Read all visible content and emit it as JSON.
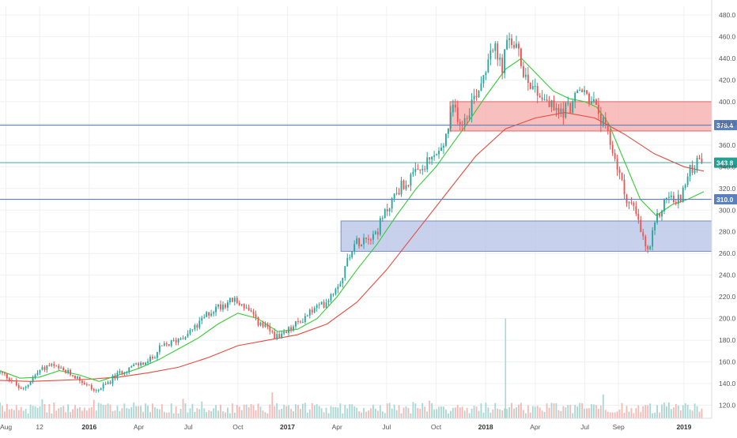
{
  "chart_data": {
    "type": "candlestick",
    "title": "",
    "xlabel": "",
    "ylabel": "",
    "ylim": [
      108,
      488
    ],
    "grid": true,
    "y_ticks": [
      "120.0",
      "140.0",
      "160.0",
      "180.0",
      "200.0",
      "220.0",
      "240.0",
      "260.0",
      "280.0",
      "300.0",
      "320.0",
      "340.0",
      "360.0",
      "380.0",
      "400.0",
      "420.0",
      "440.0",
      "460.0",
      "480.0"
    ],
    "x_ticks": [
      {
        "label": "Aug",
        "t": 2015.58,
        "bold": false
      },
      {
        "label": "12",
        "t": 2015.75,
        "bold": false
      },
      {
        "label": "2016",
        "t": 2016.0,
        "bold": true
      },
      {
        "label": "Apr",
        "t": 2016.25,
        "bold": false
      },
      {
        "label": "Jul",
        "t": 2016.5,
        "bold": false
      },
      {
        "label": "Oct",
        "t": 2016.75,
        "bold": false
      },
      {
        "label": "2017",
        "t": 2017.0,
        "bold": true
      },
      {
        "label": "Apr",
        "t": 2017.25,
        "bold": false
      },
      {
        "label": "Jul",
        "t": 2017.5,
        "bold": false
      },
      {
        "label": "Oct",
        "t": 2017.75,
        "bold": false
      },
      {
        "label": "2018",
        "t": 2018.0,
        "bold": true
      },
      {
        "label": "Apr",
        "t": 2018.25,
        "bold": false
      },
      {
        "label": "Jul",
        "t": 2018.5,
        "bold": false
      },
      {
        "label": "Sep",
        "t": 2018.67,
        "bold": false
      },
      {
        "label": "2019",
        "t": 2019.0,
        "bold": true
      }
    ],
    "x_range": [
      2015.55,
      2019.14
    ],
    "price_path": [
      [
        2015.55,
        150
      ],
      [
        2015.6,
        145
      ],
      [
        2015.66,
        133
      ],
      [
        2015.7,
        142
      ],
      [
        2015.75,
        152
      ],
      [
        2015.8,
        157
      ],
      [
        2015.86,
        152
      ],
      [
        2015.92,
        148
      ],
      [
        2015.98,
        140
      ],
      [
        2016.03,
        133
      ],
      [
        2016.08,
        138
      ],
      [
        2016.12,
        145
      ],
      [
        2016.18,
        153
      ],
      [
        2016.24,
        157
      ],
      [
        2016.3,
        160
      ],
      [
        2016.36,
        173
      ],
      [
        2016.42,
        178
      ],
      [
        2016.48,
        185
      ],
      [
        2016.54,
        192
      ],
      [
        2016.6,
        205
      ],
      [
        2016.66,
        212
      ],
      [
        2016.72,
        217
      ],
      [
        2016.78,
        212
      ],
      [
        2016.84,
        198
      ],
      [
        2016.9,
        190
      ],
      [
        2016.96,
        181
      ],
      [
        2017.0,
        188
      ],
      [
        2017.06,
        197
      ],
      [
        2017.12,
        207
      ],
      [
        2017.18,
        213
      ],
      [
        2017.23,
        225
      ],
      [
        2017.28,
        240
      ],
      [
        2017.32,
        265
      ],
      [
        2017.38,
        275
      ],
      [
        2017.45,
        280
      ],
      [
        2017.5,
        300
      ],
      [
        2017.56,
        320
      ],
      [
        2017.62,
        328
      ],
      [
        2017.68,
        337
      ],
      [
        2017.74,
        350
      ],
      [
        2017.78,
        355
      ],
      [
        2017.81,
        375
      ],
      [
        2017.84,
        395
      ],
      [
        2017.88,
        380
      ],
      [
        2017.93,
        400
      ],
      [
        2017.98,
        420
      ],
      [
        2018.03,
        455
      ],
      [
        2018.08,
        430
      ],
      [
        2018.12,
        460
      ],
      [
        2018.16,
        445
      ],
      [
        2018.2,
        425
      ],
      [
        2018.26,
        410
      ],
      [
        2018.31,
        400
      ],
      [
        2018.36,
        390
      ],
      [
        2018.42,
        395
      ],
      [
        2018.48,
        410
      ],
      [
        2018.52,
        405
      ],
      [
        2018.56,
        392
      ],
      [
        2018.6,
        375
      ],
      [
        2018.65,
        350
      ],
      [
        2018.7,
        315
      ],
      [
        2018.75,
        300
      ],
      [
        2018.79,
        275
      ],
      [
        2018.82,
        260
      ],
      [
        2018.86,
        290
      ],
      [
        2018.92,
        315
      ],
      [
        2018.96,
        305
      ],
      [
        2019.0,
        320
      ],
      [
        2019.04,
        340
      ],
      [
        2019.09,
        344
      ]
    ],
    "ma_fast": [
      [
        2015.55,
        152
      ],
      [
        2015.65,
        145
      ],
      [
        2015.75,
        146
      ],
      [
        2015.85,
        152
      ],
      [
        2015.95,
        148
      ],
      [
        2016.05,
        142
      ],
      [
        2016.15,
        148
      ],
      [
        2016.25,
        154
      ],
      [
        2016.35,
        162
      ],
      [
        2016.45,
        172
      ],
      [
        2016.55,
        182
      ],
      [
        2016.65,
        195
      ],
      [
        2016.75,
        205
      ],
      [
        2016.85,
        200
      ],
      [
        2016.95,
        188
      ],
      [
        2017.05,
        190
      ],
      [
        2017.15,
        200
      ],
      [
        2017.25,
        220
      ],
      [
        2017.35,
        245
      ],
      [
        2017.45,
        268
      ],
      [
        2017.55,
        295
      ],
      [
        2017.65,
        320
      ],
      [
        2017.75,
        340
      ],
      [
        2017.82,
        358
      ],
      [
        2017.9,
        378
      ],
      [
        2018.0,
        405
      ],
      [
        2018.1,
        430
      ],
      [
        2018.18,
        440
      ],
      [
        2018.26,
        425
      ],
      [
        2018.34,
        410
      ],
      [
        2018.42,
        403
      ],
      [
        2018.5,
        400
      ],
      [
        2018.56,
        395
      ],
      [
        2018.62,
        380
      ],
      [
        2018.7,
        345
      ],
      [
        2018.78,
        310
      ],
      [
        2018.86,
        295
      ],
      [
        2018.94,
        305
      ],
      [
        2019.02,
        310
      ],
      [
        2019.1,
        317
      ]
    ],
    "ma_slow": [
      [
        2015.55,
        143
      ],
      [
        2015.7,
        142
      ],
      [
        2015.85,
        143
      ],
      [
        2016.0,
        144
      ],
      [
        2016.15,
        146
      ],
      [
        2016.3,
        150
      ],
      [
        2016.45,
        155
      ],
      [
        2016.6,
        164
      ],
      [
        2016.75,
        175
      ],
      [
        2016.9,
        180
      ],
      [
        2017.05,
        185
      ],
      [
        2017.2,
        195
      ],
      [
        2017.35,
        215
      ],
      [
        2017.5,
        245
      ],
      [
        2017.65,
        280
      ],
      [
        2017.8,
        315
      ],
      [
        2017.95,
        350
      ],
      [
        2018.1,
        375
      ],
      [
        2018.25,
        385
      ],
      [
        2018.4,
        390
      ],
      [
        2018.55,
        385
      ],
      [
        2018.7,
        370
      ],
      [
        2018.85,
        352
      ],
      [
        2019.0,
        340
      ],
      [
        2019.1,
        336
      ]
    ],
    "horizontal_lines": [
      {
        "name": "level-378",
        "value": 378.4,
        "label": "378.4",
        "color": "#5b7fbf"
      },
      {
        "name": "level-310",
        "value": 310.0,
        "label": "310.0",
        "color": "#5b7fbf"
      },
      {
        "name": "last-price",
        "value": 343.8,
        "label": "343.8",
        "color": "#22a093"
      }
    ],
    "zones": [
      {
        "name": "resistance-zone",
        "t0": 2017.82,
        "t1": 2019.14,
        "y0": 373,
        "y1": 400,
        "fill": "#f5a9a9",
        "stroke": "#e06666"
      },
      {
        "name": "support-zone",
        "t0": 2017.27,
        "t1": 2019.14,
        "y0": 262,
        "y1": 290,
        "fill": "#b6c1e6",
        "stroke": "#7b8cc9"
      }
    ],
    "volume_spike": {
      "t": 2018.1,
      "value": 1.0
    },
    "colors": {
      "up": "#26a69a",
      "down": "#ef5350",
      "ma_fast": "#33cc33",
      "ma_slow": "#e64a3d",
      "grid": "#eef0f3",
      "axis_text": "#555555",
      "volume_up": "#a8d8d3",
      "volume_down": "#f6b9b6"
    }
  }
}
